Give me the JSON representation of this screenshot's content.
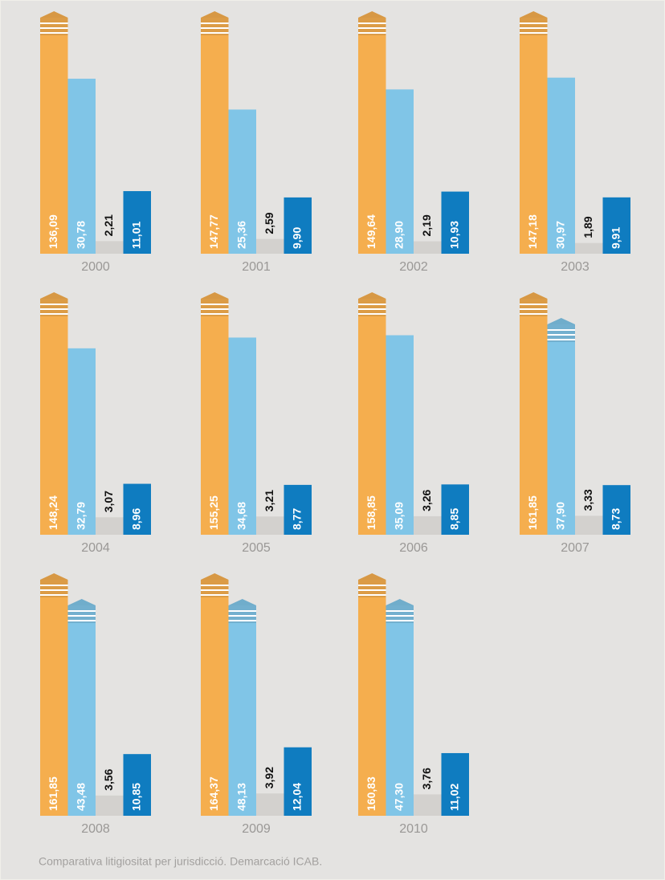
{
  "chart_data": {
    "type": "bar",
    "categories": [
      "2000",
      "2001",
      "2002",
      "2003",
      "2004",
      "2005",
      "2006",
      "2007",
      "2008",
      "2009",
      "2010"
    ],
    "series": [
      {
        "color": "#f5ae4e",
        "values": [
          136.09,
          147.77,
          149.64,
          147.18,
          148.24,
          155.25,
          158.85,
          161.85,
          161.85,
          164.37,
          160.83
        ],
        "value_labels": [
          "136,09",
          "147,77",
          "149,64",
          "147,18",
          "148,24",
          "155,25",
          "158,85",
          "161,85",
          "161,85",
          "164,37",
          "160,83"
        ]
      },
      {
        "color": "#80c5e7",
        "values": [
          30.78,
          25.36,
          28.9,
          30.97,
          32.79,
          34.68,
          35.09,
          37.9,
          43.48,
          48.13,
          47.3
        ],
        "value_labels": [
          "30,78",
          "25,36",
          "28,90",
          "30,97",
          "32,79",
          "34,68",
          "35,09",
          "37,90",
          "43,48",
          "48,13",
          "47,30"
        ]
      },
      {
        "color": "#d3d1ce",
        "values": [
          2.21,
          2.59,
          2.19,
          1.89,
          3.07,
          3.21,
          3.26,
          3.33,
          3.56,
          3.92,
          3.76
        ],
        "value_labels": [
          "2,21",
          "2,59",
          "2,19",
          "1,89",
          "3,07",
          "3,21",
          "3,26",
          "3,33",
          "3,56",
          "3,92",
          "3,76"
        ]
      },
      {
        "color": "#0f7cc0",
        "values": [
          11.01,
          9.9,
          10.93,
          9.91,
          8.96,
          8.77,
          8.85,
          8.73,
          10.85,
          12.04,
          11.02
        ],
        "value_labels": [
          "11,01",
          "9,90",
          "10,93",
          "9,91",
          "8,96",
          "8,77",
          "8,85",
          "8,73",
          "10,85",
          "12,04",
          "11,02"
        ]
      }
    ],
    "ylim": [
      0,
      37
    ],
    "caption": "Comparativa litigiositat per jurisdicció. Demarcació ICAB."
  }
}
